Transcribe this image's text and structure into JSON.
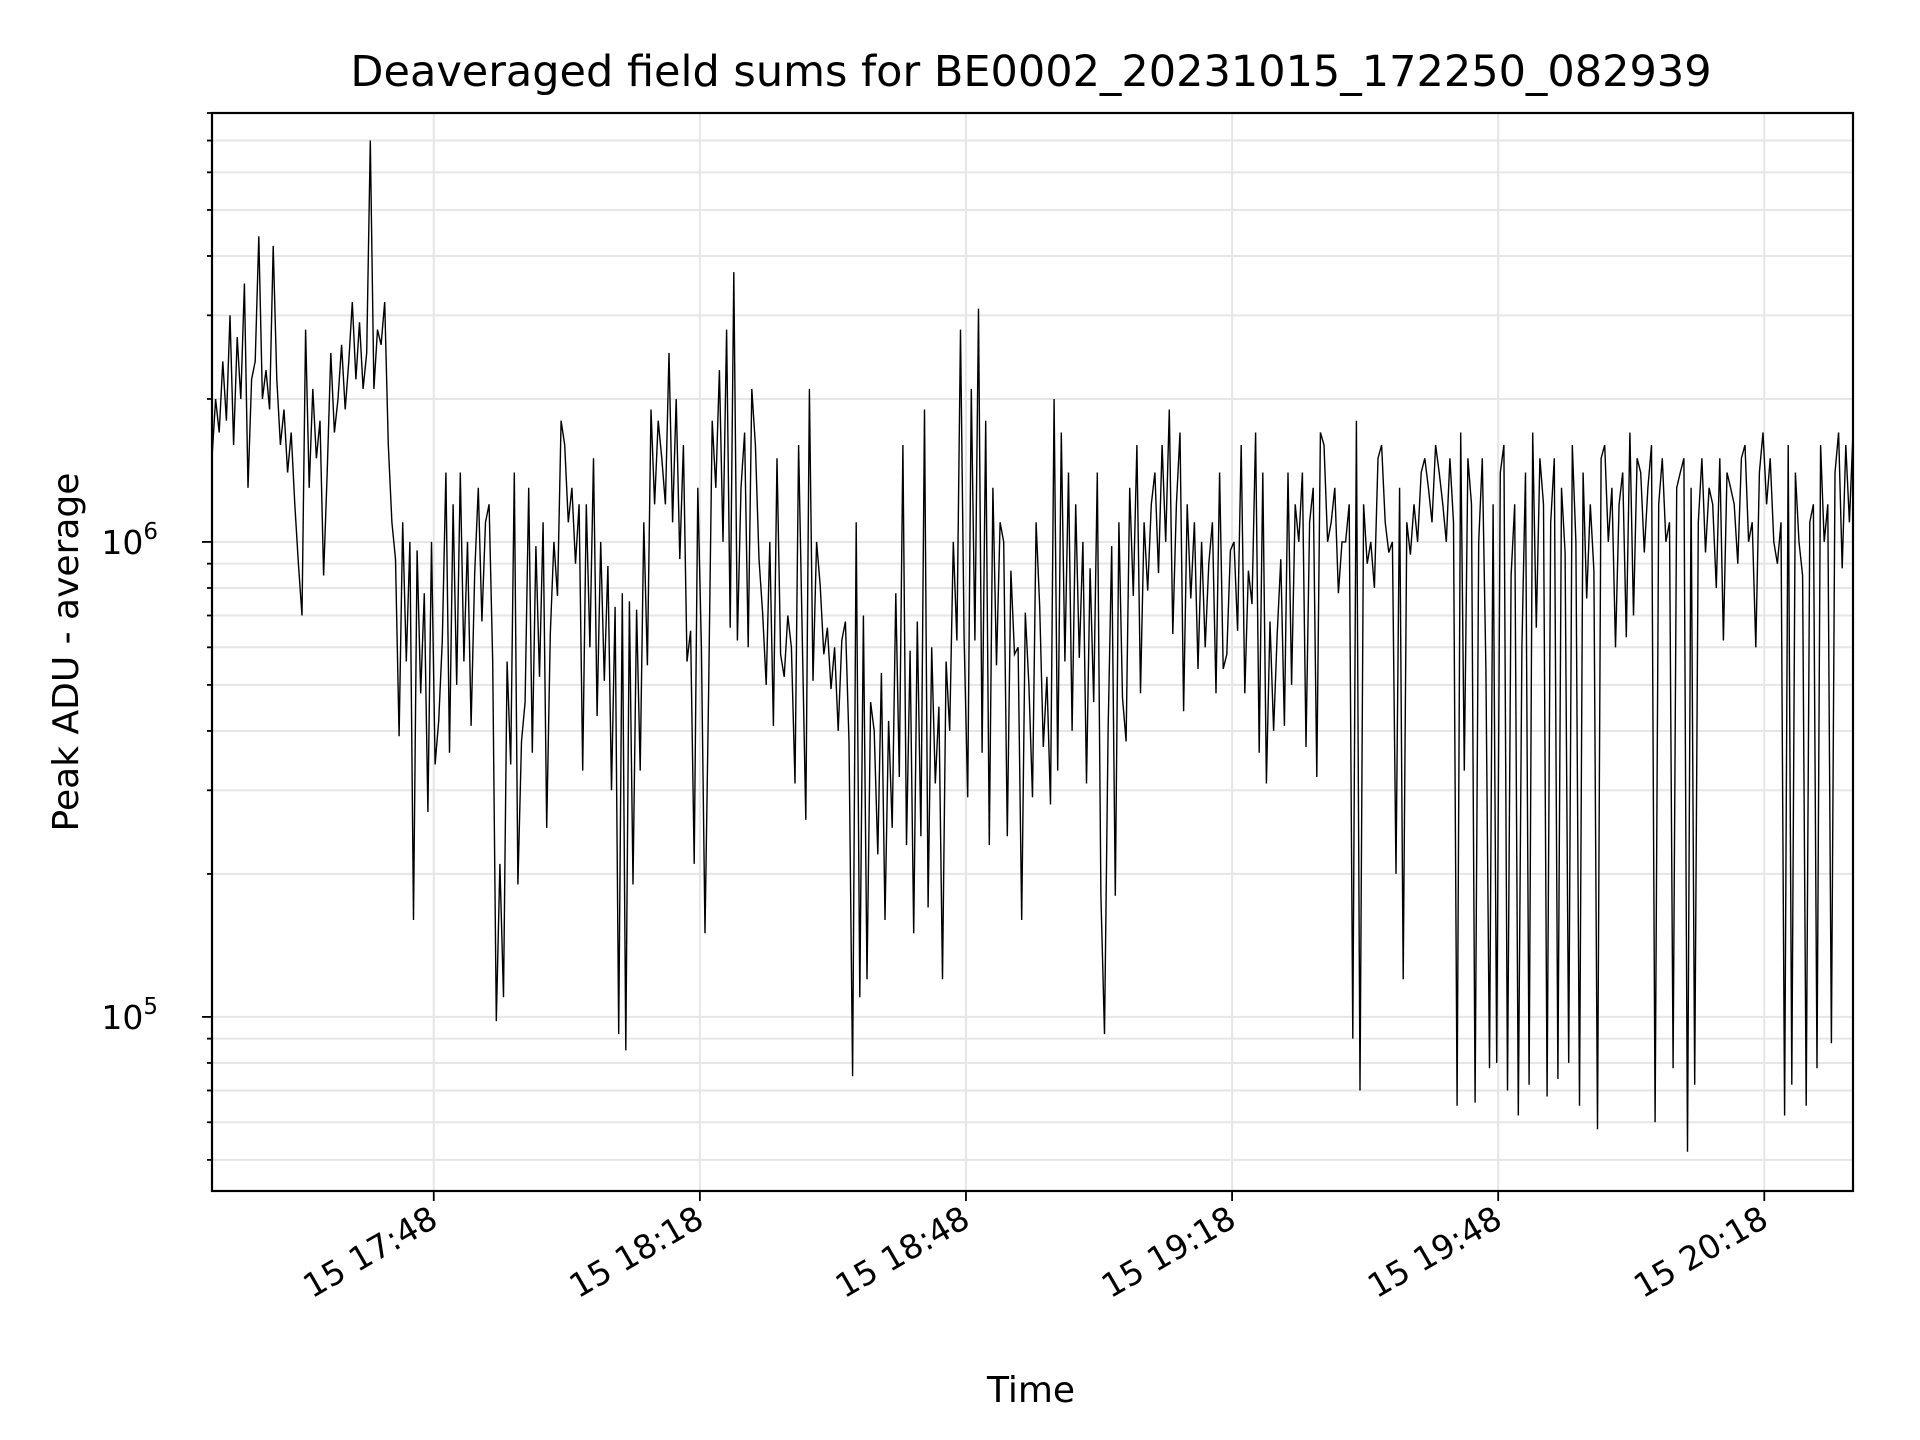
{
  "chart_data": {
    "type": "line",
    "title": "Deaveraged field sums for BE0002_20231015_172250_082939",
    "xlabel": "Time",
    "ylabel": "Peak ADU - average",
    "x_tick_labels": [
      "15 17:48",
      "15 18:18",
      "15 18:48",
      "15 19:18",
      "15 19:48",
      "15 20:18"
    ],
    "y_tick_labels": [
      {
        "base": "10",
        "exp": "5",
        "value": 100000
      },
      {
        "base": "10",
        "exp": "6",
        "value": 1000000
      }
    ],
    "xlim": [
      "2023-10-15 17:23",
      "2023-10-15 20:28"
    ],
    "ylim": [
      43000,
      8000000
    ],
    "y_scale": "log",
    "grid": true,
    "series": [
      {
        "color": "#000000",
        "x_start": "2023-10-15 17:23",
        "x_end": "2023-10-15 20:28",
        "values": [
          1500000,
          2000000,
          1700000,
          2400000,
          1800000,
          3000000,
          1600000,
          2700000,
          2000000,
          3500000,
          1300000,
          2200000,
          2400000,
          4400000,
          2000000,
          2300000,
          1900000,
          4200000,
          2200000,
          1600000,
          1900000,
          1400000,
          1700000,
          1200000,
          900000,
          700000,
          2800000,
          1300000,
          2100000,
          1500000,
          1800000,
          850000,
          1400000,
          2500000,
          1700000,
          2000000,
          2600000,
          1900000,
          2400000,
          3200000,
          2200000,
          2900000,
          2100000,
          2500000,
          7000000,
          2100000,
          2800000,
          2600000,
          3200000,
          1600000,
          1100000,
          920000,
          390000,
          1100000,
          560000,
          1000000,
          160000,
          960000,
          480000,
          780000,
          270000,
          1000000,
          340000,
          420000,
          620000,
          1400000,
          360000,
          1200000,
          500000,
          1400000,
          560000,
          1000000,
          410000,
          860000,
          1300000,
          680000,
          1100000,
          1200000,
          560000,
          98000,
          210000,
          110000,
          560000,
          340000,
          1400000,
          190000,
          380000,
          460000,
          1300000,
          360000,
          980000,
          520000,
          1100000,
          250000,
          640000,
          1000000,
          770000,
          1800000,
          1600000,
          1100000,
          1300000,
          900000,
          1200000,
          330000,
          1200000,
          600000,
          1500000,
          430000,
          1000000,
          510000,
          890000,
          300000,
          730000,
          92000,
          780000,
          85000,
          750000,
          190000,
          720000,
          330000,
          1100000,
          550000,
          1900000,
          1200000,
          1800000,
          1500000,
          1200000,
          2500000,
          1100000,
          2000000,
          920000,
          1600000,
          560000,
          650000,
          210000,
          1300000,
          600000,
          150000,
          480000,
          1800000,
          1300000,
          2300000,
          1000000,
          2800000,
          660000,
          3700000,
          620000,
          1300000,
          1700000,
          600000,
          2100000,
          1600000,
          920000,
          710000,
          500000,
          1000000,
          410000,
          1500000,
          580000,
          520000,
          700000,
          600000,
          310000,
          1600000,
          640000,
          260000,
          2100000,
          510000,
          1000000,
          810000,
          580000,
          660000,
          490000,
          600000,
          400000,
          620000,
          680000,
          380000,
          75000,
          1100000,
          110000,
          700000,
          120000,
          460000,
          400000,
          220000,
          530000,
          160000,
          420000,
          250000,
          780000,
          320000,
          1600000,
          230000,
          590000,
          150000,
          680000,
          240000,
          1900000,
          170000,
          600000,
          310000,
          450000,
          120000,
          560000,
          400000,
          1000000,
          620000,
          2800000,
          630000,
          290000,
          2100000,
          620000,
          3100000,
          360000,
          1800000,
          230000,
          1300000,
          550000,
          1100000,
          1000000,
          240000,
          870000,
          580000,
          600000,
          160000,
          710000,
          500000,
          290000,
          1100000,
          730000,
          370000,
          520000,
          280000,
          2000000,
          330000,
          1700000,
          560000,
          1400000,
          400000,
          1200000,
          570000,
          1000000,
          310000,
          880000,
          460000,
          1400000,
          180000,
          92000,
          400000,
          980000,
          180000,
          1100000,
          470000,
          380000,
          1300000,
          770000,
          1600000,
          480000,
          1100000,
          790000,
          1200000,
          1400000,
          860000,
          1600000,
          1000000,
          1900000,
          640000,
          1200000,
          1700000,
          440000,
          1200000,
          760000,
          1100000,
          540000,
          1000000,
          600000,
          900000,
          1100000,
          480000,
          1400000,
          540000,
          580000,
          960000,
          1000000,
          650000,
          1600000,
          480000,
          870000,
          740000,
          1700000,
          360000,
          1400000,
          310000,
          680000,
          400000,
          640000,
          920000,
          410000,
          1400000,
          500000,
          1200000,
          1000000,
          1400000,
          370000,
          1100000,
          1300000,
          320000,
          1700000,
          1600000,
          1000000,
          1100000,
          1300000,
          780000,
          1000000,
          1000000,
          1200000,
          90000,
          1800000,
          70000,
          1200000,
          900000,
          1000000,
          800000,
          1500000,
          1600000,
          1100000,
          950000,
          1000000,
          200000,
          1300000,
          120000,
          1100000,
          940000,
          1200000,
          1000000,
          1400000,
          1500000,
          1300000,
          1100000,
          1600000,
          1400000,
          1200000,
          1000000,
          1500000,
          1100000,
          65000,
          1700000,
          330000,
          1500000,
          1200000,
          66000,
          1000000,
          1500000,
          540000,
          78000,
          1200000,
          80000,
          1400000,
          1600000,
          70000,
          850000,
          1200000,
          62000,
          600000,
          1400000,
          72000,
          1700000,
          660000,
          1500000,
          1200000,
          68000,
          1100000,
          1500000,
          74000,
          1300000,
          950000,
          80000,
          1600000,
          1000000,
          65000,
          1400000,
          760000,
          1200000,
          870000,
          58000,
          1500000,
          1600000,
          1000000,
          1300000,
          600000,
          1200000,
          1400000,
          630000,
          1700000,
          700000,
          1500000,
          1400000,
          950000,
          1300000,
          1600000,
          60000,
          1200000,
          1500000,
          1000000,
          1100000,
          78000,
          1300000,
          1400000,
          1500000,
          52000,
          1300000,
          72000,
          1100000,
          1500000,
          950000,
          1300000,
          1200000,
          800000,
          1500000,
          620000,
          1400000,
          1300000,
          1200000,
          900000,
          1500000,
          1600000,
          1000000,
          1100000,
          600000,
          1400000,
          1700000,
          1200000,
          1500000,
          1000000,
          900000,
          1100000,
          62000,
          1600000,
          72000,
          1400000,
          1000000,
          850000,
          65000,
          1100000,
          1200000,
          78000,
          1600000,
          1000000,
          1200000,
          88000,
          1400000,
          1700000,
          880000,
          1600000,
          1100000,
          1700000
        ]
      }
    ]
  }
}
